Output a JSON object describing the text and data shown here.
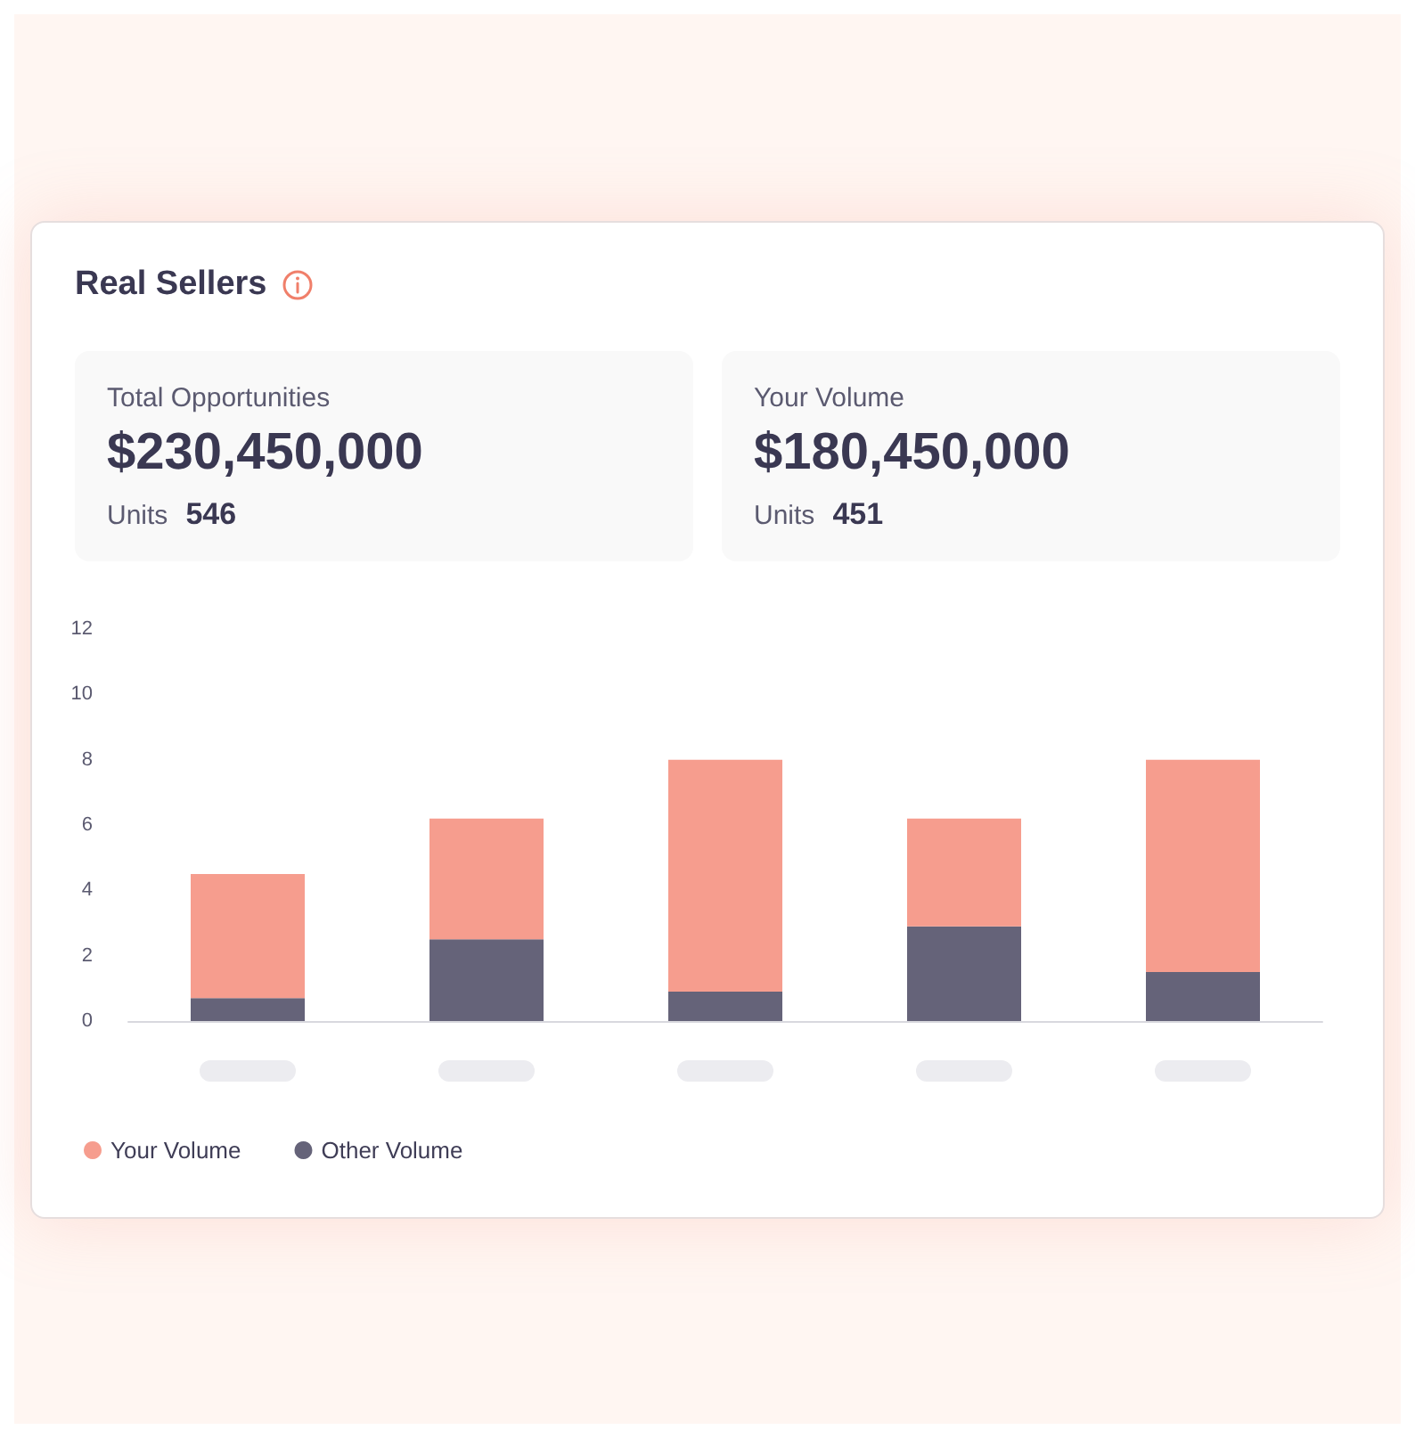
{
  "chart_data": {
    "type": "bar",
    "title": "Real Sellers",
    "annotations": [
      "Total Opportunities",
      "$230,450,000",
      "Units",
      "546",
      "Your Volume",
      "$180,450,000",
      "Units",
      "451"
    ],
    "categories": [
      null,
      null,
      null,
      null,
      null
    ],
    "stacked": true,
    "series": [
      {
        "name": "Other Volume",
        "color": "#656379",
        "values": [
          0.7,
          2.5,
          0.9,
          2.9,
          1.5
        ]
      },
      {
        "name": "Your Volume",
        "color": "#f69d8e",
        "values": [
          3.8,
          3.7,
          7.1,
          3.3,
          6.5
        ]
      }
    ],
    "ylim": [
      0,
      12
    ],
    "yticks": [
      0,
      2,
      4,
      6,
      8,
      10,
      12
    ],
    "grid": false,
    "legend": "bottom left"
  }
}
